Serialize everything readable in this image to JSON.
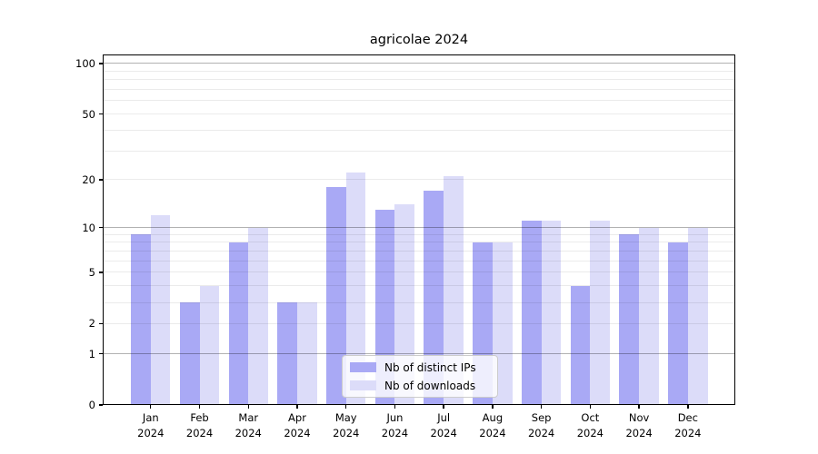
{
  "chart_data": {
    "type": "bar",
    "title": "agricolae 2024",
    "categories": [
      "Jan\n2024",
      "Feb\n2024",
      "Mar\n2024",
      "Apr\n2024",
      "May\n2024",
      "Jun\n2024",
      "Jul\n2024",
      "Aug\n2024",
      "Sep\n2024",
      "Oct\n2024",
      "Nov\n2024",
      "Dec\n2024"
    ],
    "series": [
      {
        "name": "Nb of distinct IPs",
        "color": "#a9a9f5",
        "values": [
          9,
          3,
          8,
          3,
          18,
          13,
          17,
          8,
          11,
          4,
          9,
          8
        ]
      },
      {
        "name": "Nb of downloads",
        "color": "#dcdcf9",
        "values": [
          12,
          4,
          10,
          3,
          22,
          14,
          21,
          8,
          11,
          11,
          10,
          10
        ]
      }
    ],
    "xlabel": "",
    "ylabel": "",
    "yscale": "log1p",
    "ylim": [
      0,
      113
    ],
    "yticks": [
      0,
      1,
      2,
      5,
      10,
      20,
      50,
      100
    ],
    "major_gridlines": [
      1,
      10,
      100
    ],
    "minor_gridlines": [
      2,
      3,
      4,
      5,
      6,
      7,
      8,
      9,
      20,
      30,
      40,
      50,
      60,
      70,
      80,
      90
    ],
    "grid": true,
    "grid_above_bars": true,
    "legend_position": "lower center",
    "background": "#ffffff"
  }
}
